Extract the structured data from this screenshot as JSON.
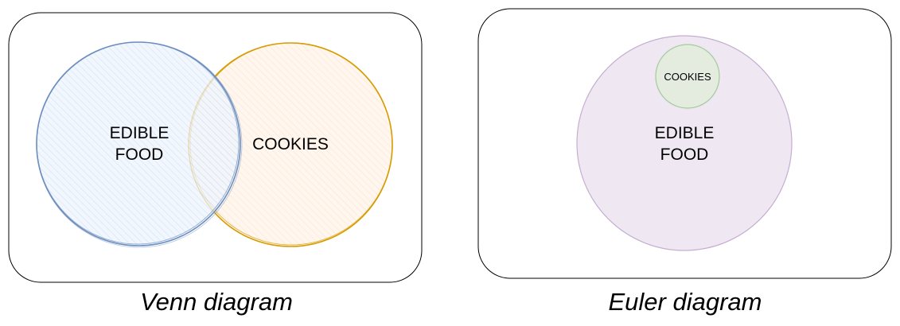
{
  "venn": {
    "caption": "Venn diagram",
    "set_a": {
      "label_line1": "EDIBLE",
      "label_line2": "FOOD",
      "fill": "#dae8fc",
      "stroke": "#6c8ebf"
    },
    "set_b": {
      "label": "COOKIES",
      "fill": "#ffe6cc",
      "stroke": "#d79b00"
    }
  },
  "euler": {
    "caption": "Euler diagram",
    "outer_set": {
      "label_line1": "EDIBLE",
      "label_line2": "FOOD",
      "fill": "#e1d5e7",
      "stroke": "#9673a6"
    },
    "inner_set": {
      "label": "COOKIES",
      "fill": "#d5e8d4",
      "stroke": "#82b366"
    }
  },
  "frame_color": "#000000"
}
